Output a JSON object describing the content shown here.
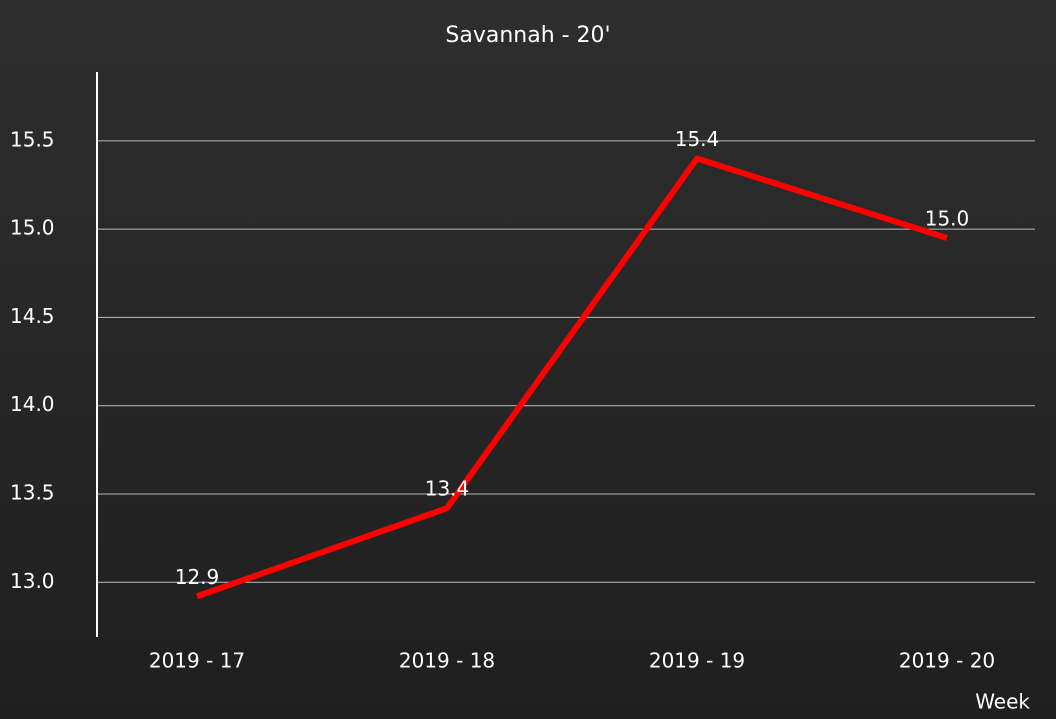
{
  "chart_data": {
    "type": "line",
    "title": "Savannah - 20'",
    "x_label": "Week",
    "categories": [
      "2019 - 17",
      "2019 - 18",
      "2019 - 19",
      "2019 - 20"
    ],
    "series": [
      {
        "name": "Savannah - 20'",
        "color": "#ff0000",
        "values": [
          12.92,
          13.42,
          15.4,
          14.95
        ],
        "value_labels": [
          "12.9",
          "13.4",
          "15.4",
          "15.0"
        ]
      }
    ],
    "ylim": [
      12.69,
      15.89
    ],
    "yticks": [
      {
        "value": 13,
        "label": "13.0"
      },
      13.5,
      {
        "value": 14,
        "label": "14.0"
      },
      14.5,
      {
        "value": 15,
        "label": "15.0"
      },
      15.5
    ],
    "grid": true
  }
}
